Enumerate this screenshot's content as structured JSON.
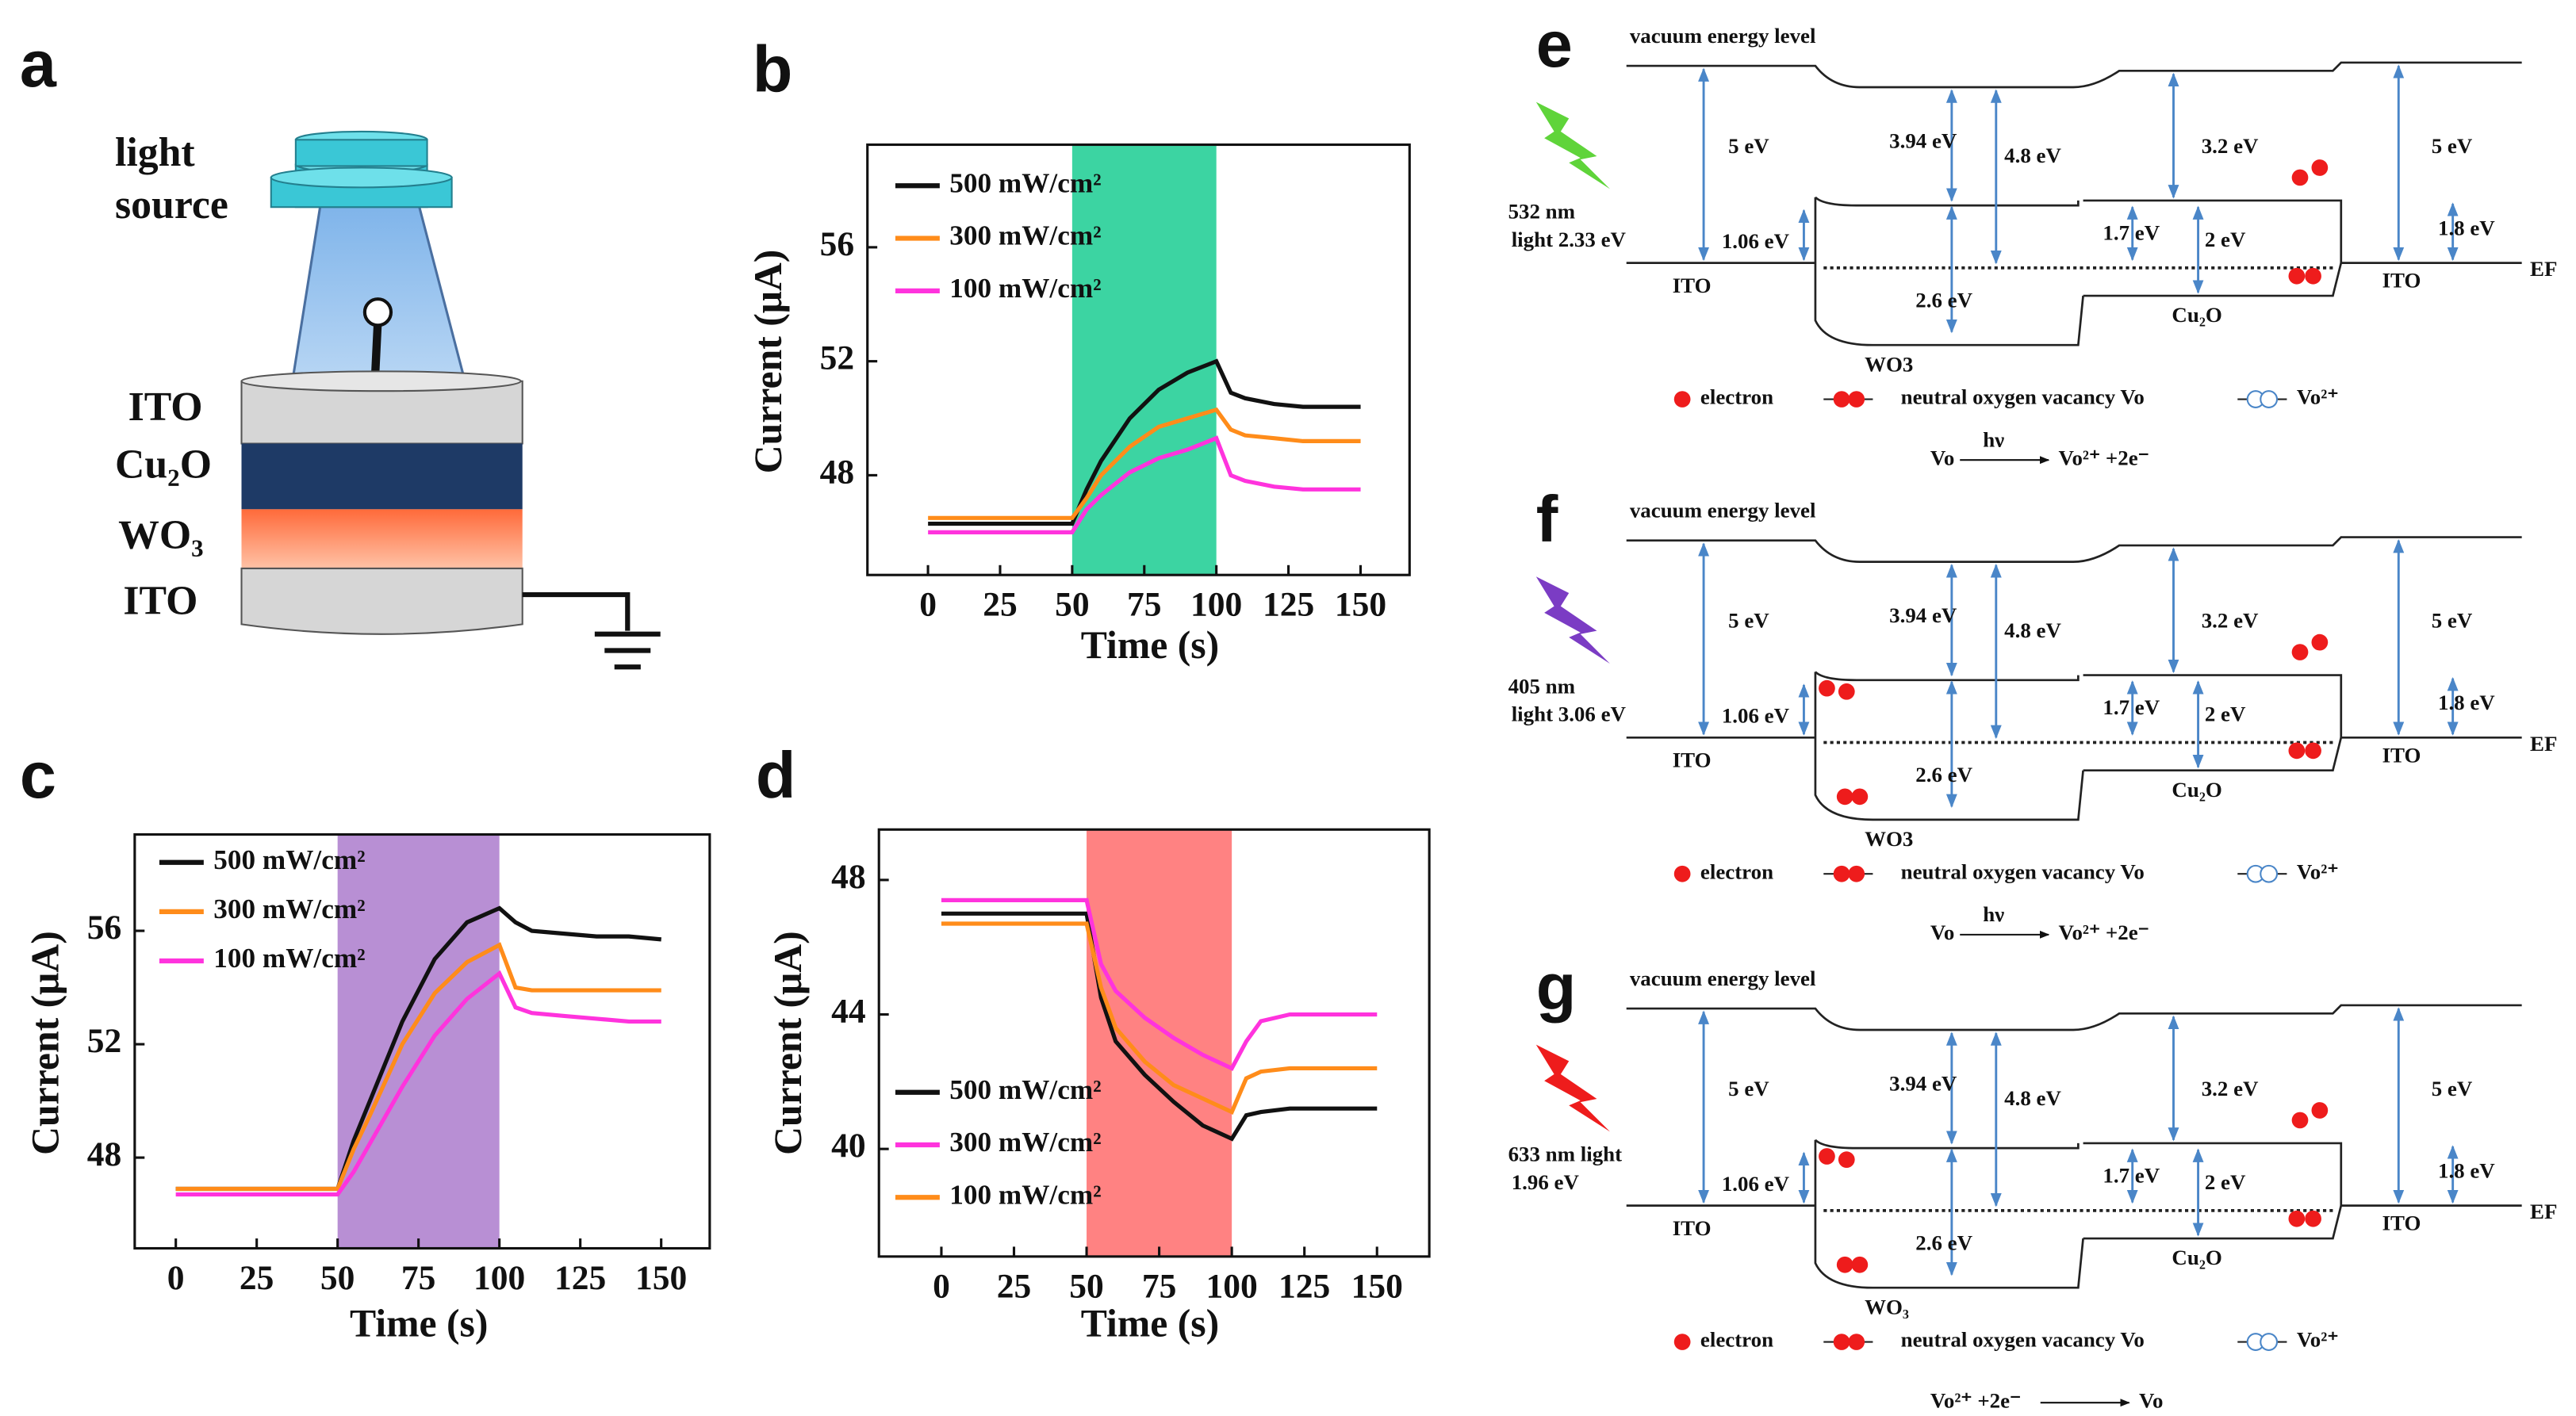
{
  "panel_a": {
    "label": "a",
    "light_source": [
      "light",
      "source"
    ],
    "layers": [
      "ITO",
      "Cu₂O",
      "WO₃",
      "ITO"
    ]
  },
  "chart_data": [
    {
      "type": "line",
      "label": "b",
      "xlabel": "Time (s)",
      "ylabel": "Current (μA)",
      "x": [
        0,
        10,
        20,
        30,
        40,
        50,
        55,
        60,
        70,
        80,
        90,
        100,
        105,
        110,
        120,
        130,
        140,
        150
      ],
      "series": [
        {
          "name": "500 mW/cm²",
          "color": "#111111",
          "values": [
            46.3,
            46.3,
            46.3,
            46.3,
            46.3,
            46.3,
            47.5,
            48.5,
            50,
            51,
            51.6,
            52,
            50.9,
            50.7,
            50.5,
            50.4,
            50.4,
            50.4
          ]
        },
        {
          "name": "300 mW/cm²",
          "color": "#ff8c1a",
          "values": [
            46.5,
            46.5,
            46.5,
            46.5,
            46.5,
            46.5,
            47.2,
            48,
            49,
            49.7,
            50,
            50.3,
            49.6,
            49.4,
            49.3,
            49.2,
            49.2,
            49.2
          ]
        },
        {
          "name": "100 mW/cm²",
          "color": "#ff33dd",
          "values": [
            46,
            46,
            46,
            46,
            46,
            46,
            46.8,
            47.3,
            48.1,
            48.6,
            48.9,
            49.3,
            48,
            47.8,
            47.6,
            47.5,
            47.5,
            47.5
          ]
        }
      ],
      "xlim": [
        -21,
        167
      ],
      "ylim": [
        44.5,
        59.6
      ],
      "xticks": [
        0,
        25,
        50,
        75,
        100,
        125,
        150
      ],
      "yticks": [
        48,
        52,
        56
      ],
      "shade": [
        50,
        100
      ],
      "shade_color": "#3cd4a2",
      "legend": "upper left"
    },
    {
      "type": "line",
      "label": "c",
      "xlabel": "Time (s)",
      "ylabel": "Current (μA)",
      "x": [
        0,
        10,
        20,
        30,
        40,
        50,
        55,
        60,
        70,
        80,
        90,
        100,
        105,
        110,
        120,
        130,
        140,
        150
      ],
      "series": [
        {
          "name": "500 mW/cm²",
          "color": "#111111",
          "values": [
            46.9,
            46.9,
            46.9,
            46.9,
            46.9,
            46.9,
            48.6,
            50,
            52.8,
            55,
            56.3,
            56.8,
            56.3,
            56,
            55.9,
            55.8,
            55.8,
            55.7
          ]
        },
        {
          "name": "300 mW/cm²",
          "color": "#ff8c1a",
          "values": [
            46.9,
            46.9,
            46.9,
            46.9,
            46.9,
            46.9,
            48.3,
            49.5,
            52,
            53.8,
            54.9,
            55.5,
            54,
            53.9,
            53.9,
            53.9,
            53.9,
            53.9
          ]
        },
        {
          "name": "100 mW/cm²",
          "color": "#ff33dd",
          "values": [
            46.7,
            46.7,
            46.7,
            46.7,
            46.7,
            46.7,
            47.5,
            48.5,
            50.5,
            52.3,
            53.6,
            54.5,
            53.3,
            53.1,
            53,
            52.9,
            52.8,
            52.8
          ]
        }
      ],
      "xlim": [
        -12.7,
        165
      ],
      "ylim": [
        44.8,
        59.4
      ],
      "xticks": [
        0,
        25,
        50,
        75,
        100,
        125,
        150
      ],
      "yticks": [
        48,
        52,
        56
      ],
      "shade": [
        50,
        100
      ],
      "shade_color": "#b88fd4",
      "legend": "upper left"
    },
    {
      "type": "line",
      "label": "d",
      "xlabel": "Time (s)",
      "ylabel": "Current (μA)",
      "x": [
        0,
        10,
        20,
        30,
        40,
        50,
        55,
        60,
        70,
        80,
        90,
        100,
        105,
        110,
        120,
        130,
        140,
        150
      ],
      "series": [
        {
          "name": "500 mW/cm²",
          "color": "#111111",
          "values": [
            47,
            47,
            47,
            47,
            47,
            47,
            44.5,
            43.2,
            42.2,
            41.4,
            40.7,
            40.3,
            41,
            41.1,
            41.2,
            41.2,
            41.2,
            41.2
          ]
        },
        {
          "name": "300 mW/cm²",
          "color": "#ff33dd",
          "values": [
            47.4,
            47.4,
            47.4,
            47.4,
            47.4,
            47.4,
            45.5,
            44.7,
            43.9,
            43.3,
            42.8,
            42.4,
            43.2,
            43.8,
            44,
            44,
            44,
            44
          ]
        },
        {
          "name": "100 mW/cm²",
          "color": "#ff8c1a",
          "values": [
            46.7,
            46.7,
            46.7,
            46.7,
            46.7,
            46.7,
            44.8,
            43.6,
            42.6,
            41.9,
            41.5,
            41.1,
            42.1,
            42.3,
            42.4,
            42.4,
            42.4,
            42.4
          ]
        }
      ],
      "xlim": [
        -21.5,
        168
      ],
      "ylim": [
        36.8,
        49.5
      ],
      "xticks": [
        0,
        25,
        50,
        75,
        100,
        125,
        150
      ],
      "yticks": [
        40,
        44,
        48
      ],
      "shade": [
        50,
        100
      ],
      "shade_color": "#ff8282",
      "legend": "lower left"
    }
  ],
  "diagrams": [
    {
      "label": "e",
      "bolt_color": "#5fd43a",
      "vacuum": "vacuum energy level",
      "light": [
        "532 nm",
        "light 2.33 eV"
      ],
      "ito_left": "ITO",
      "ito_right": "ITO",
      "wo3": "WO3",
      "cu2o": "Cu₂O",
      "fermi": "EF",
      "gaps": {
        "ito_l_wf": "5 eV",
        "wo3_ea": "3.94 eV",
        "wo3_wf": "4.8 eV",
        "cu2o_ea": "3.2 eV",
        "ito_r_wf": "5 eV",
        "wo3_vo": "1.06 eV",
        "wo3_gap": "2.6 eV",
        "cu2o_vo": "1.7 eV",
        "cu2o_gap": "2 eV",
        "ito_r_vo": "1.8 eV"
      },
      "legend": {
        "electron": "electron",
        "vacancy": "neutral oxygen vacancy Vo",
        "ion": "Vo²⁺"
      },
      "equation": {
        "lhs": "Vo",
        "arrow": "hν",
        "rhs": "Vo²⁺ +2e⁻"
      }
    },
    {
      "label": "f",
      "bolt_color": "#7b3cc4",
      "vacuum": "vacuum energy level",
      "light": [
        "405 nm",
        "light 3.06 eV"
      ],
      "ito_left": "ITO",
      "ito_right": "ITO",
      "wo3": "WO3",
      "cu2o": "Cu₂O",
      "fermi": "EF",
      "gaps": {
        "ito_l_wf": "5 eV",
        "wo3_ea": "3.94 eV",
        "wo3_wf": "4.8 eV",
        "cu2o_ea": "3.2 eV",
        "ito_r_wf": "5 eV",
        "wo3_vo": "1.06 eV",
        "wo3_gap": "2.6 eV",
        "cu2o_vo": "1.7 eV",
        "cu2o_gap": "2 eV",
        "ito_r_vo": "1.8 eV"
      },
      "legend": {
        "electron": "electron",
        "vacancy": "neutral oxygen vacancy Vo",
        "ion": "Vo²⁺"
      },
      "equation": {
        "lhs": "Vo",
        "arrow": "hν",
        "rhs": "Vo²⁺ +2e⁻"
      }
    },
    {
      "label": "g",
      "bolt_color": "#ee1c1c",
      "vacuum": "vacuum energy level",
      "light": [
        "633 nm light",
        "1.96 eV"
      ],
      "ito_left": "ITO",
      "ito_right": "ITO",
      "wo3": "WO₃",
      "cu2o": "Cu₂O",
      "fermi": "EF",
      "gaps": {
        "ito_l_wf": "5 eV",
        "wo3_ea": "3.94 eV",
        "wo3_wf": "4.8 eV",
        "cu2o_ea": "3.2 eV",
        "ito_r_wf": "5 eV",
        "wo3_vo": "1.06 eV",
        "wo3_gap": "2.6 eV",
        "cu2o_vo": "1.7 eV",
        "cu2o_gap": "2 eV",
        "ito_r_vo": "1.8 eV"
      },
      "legend": {
        "electron": "electron",
        "vacancy": "neutral oxygen vacancy Vo",
        "ion": "Vo²⁺"
      },
      "equation": {
        "lhs": "Vo²⁺ +2e⁻",
        "rhs": "Vo"
      }
    }
  ]
}
